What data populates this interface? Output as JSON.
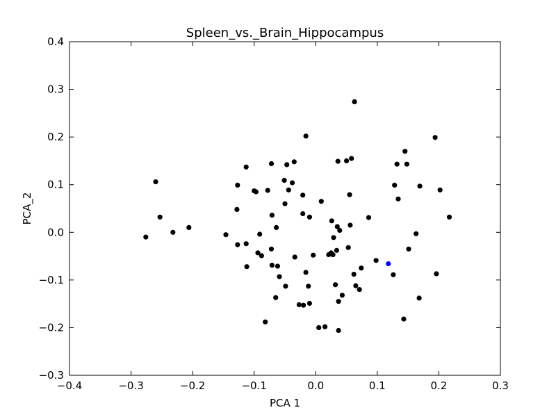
{
  "chart_data": {
    "type": "scatter",
    "title": "Spleen_vs._Brain_Hippocampus",
    "xlabel": "PCA 1",
    "ylabel": "PCA_2",
    "xlim": [
      -0.4,
      0.3
    ],
    "ylim": [
      -0.3,
      0.4
    ],
    "xticks": [
      -0.4,
      -0.3,
      -0.2,
      -0.1,
      0.0,
      0.1,
      0.2,
      0.3
    ],
    "yticks": [
      -0.3,
      -0.2,
      -0.1,
      0.0,
      0.1,
      0.2,
      0.3,
      0.4
    ],
    "xtick_labels": [
      "−0.4",
      "−0.3",
      "−0.2",
      "−0.1",
      "0.0",
      "0.1",
      "0.2",
      "0.3"
    ],
    "ytick_labels": [
      "−0.3",
      "−0.2",
      "−0.1",
      "0.0",
      "0.1",
      "0.2",
      "0.3",
      "0.4"
    ],
    "grid": false,
    "colors": {
      "series_default": "#000000",
      "series_highlight": "#0000ff"
    },
    "series": [
      {
        "color": "#000000",
        "points": [
          [
            -0.276,
            -0.01
          ],
          [
            -0.26,
            0.106
          ],
          [
            -0.253,
            0.032
          ],
          [
            -0.232,
            0.0
          ],
          [
            -0.206,
            0.01
          ],
          [
            -0.146,
            -0.005
          ],
          [
            -0.127,
            -0.026
          ],
          [
            -0.127,
            0.099
          ],
          [
            -0.128,
            0.048
          ],
          [
            -0.113,
            0.137
          ],
          [
            -0.113,
            -0.024
          ],
          [
            -0.112,
            -0.072
          ],
          [
            -0.1,
            0.087
          ],
          [
            -0.097,
            0.085
          ],
          [
            -0.094,
            -0.043
          ],
          [
            -0.091,
            -0.004
          ],
          [
            -0.088,
            -0.049
          ],
          [
            -0.082,
            -0.188
          ],
          [
            -0.078,
            0.088
          ],
          [
            -0.072,
            0.144
          ],
          [
            -0.072,
            -0.035
          ],
          [
            -0.071,
            0.036
          ],
          [
            -0.071,
            -0.069
          ],
          [
            -0.064,
            0.01
          ],
          [
            -0.065,
            -0.137
          ],
          [
            -0.062,
            -0.071
          ],
          [
            -0.059,
            -0.093
          ],
          [
            -0.051,
            0.109
          ],
          [
            -0.05,
            0.06
          ],
          [
            -0.049,
            -0.113
          ],
          [
            -0.047,
            0.142
          ],
          [
            -0.044,
            0.089
          ],
          [
            -0.038,
            0.104
          ],
          [
            -0.035,
            0.148
          ],
          [
            -0.034,
            -0.052
          ],
          [
            -0.027,
            -0.152
          ],
          [
            -0.021,
            0.078
          ],
          [
            -0.021,
            0.039
          ],
          [
            -0.02,
            -0.153
          ],
          [
            -0.016,
            0.202
          ],
          [
            -0.016,
            -0.084
          ],
          [
            -0.012,
            -0.113
          ],
          [
            -0.01,
            0.032
          ],
          [
            -0.01,
            -0.149
          ],
          [
            -0.004,
            -0.048
          ],
          [
            0.005,
            -0.2
          ],
          [
            0.009,
            0.065
          ],
          [
            0.015,
            -0.198
          ],
          [
            0.021,
            -0.047
          ],
          [
            0.025,
            -0.043
          ],
          [
            0.026,
            0.024
          ],
          [
            0.028,
            -0.047
          ],
          [
            0.029,
            -0.011
          ],
          [
            0.032,
            -0.11
          ],
          [
            0.034,
            -0.038
          ],
          [
            0.035,
            0.012
          ],
          [
            0.036,
            0.149
          ],
          [
            0.037,
            -0.206
          ],
          [
            0.037,
            -0.145
          ],
          [
            0.039,
            0.004
          ],
          [
            0.043,
            -0.132
          ],
          [
            0.05,
            0.15
          ],
          [
            0.053,
            -0.032
          ],
          [
            0.055,
            0.079
          ],
          [
            0.056,
            0.015
          ],
          [
            0.058,
            0.155
          ],
          [
            0.062,
            -0.088
          ],
          [
            0.063,
            0.274
          ],
          [
            0.065,
            -0.112
          ],
          [
            0.071,
            -0.12
          ],
          [
            0.074,
            -0.075
          ],
          [
            0.086,
            0.031
          ],
          [
            0.098,
            -0.059
          ],
          [
            0.126,
            -0.089
          ],
          [
            0.128,
            0.099
          ],
          [
            0.132,
            0.143
          ],
          [
            0.134,
            0.07
          ],
          [
            0.143,
            -0.182
          ],
          [
            0.145,
            0.17
          ],
          [
            0.148,
            0.143
          ],
          [
            0.151,
            -0.035
          ],
          [
            0.163,
            -0.003
          ],
          [
            0.168,
            -0.138
          ],
          [
            0.169,
            0.097
          ],
          [
            0.194,
            0.199
          ],
          [
            0.196,
            -0.087
          ],
          [
            0.202,
            0.089
          ],
          [
            0.217,
            0.032
          ]
        ]
      },
      {
        "color": "#0000ff",
        "points": [
          [
            0.118,
            -0.066
          ]
        ]
      }
    ]
  }
}
